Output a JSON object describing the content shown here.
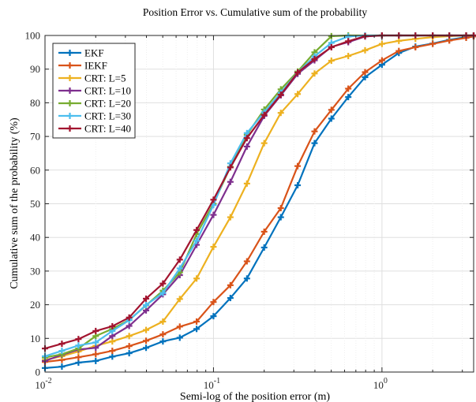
{
  "chart_data": {
    "type": "line",
    "title": "Position Error vs. Cumulative sum of the probability",
    "xlabel": "Semi-log of the position error (m)",
    "ylabel": "Cumulative sum of the probability (%)",
    "xscale": "log",
    "xlim": [
      0.01,
      3.5
    ],
    "ylim": [
      0,
      100
    ],
    "x_ticks": [
      {
        "value": 0.01,
        "base": "10",
        "exp": "-2"
      },
      {
        "value": 0.1,
        "base": "10",
        "exp": "-1"
      },
      {
        "value": 1,
        "base": "10",
        "exp": "0"
      }
    ],
    "y_ticks": [
      "0",
      "10",
      "20",
      "30",
      "40",
      "50",
      "60",
      "70",
      "80",
      "90",
      "100"
    ],
    "grid": true,
    "legend_position": "top-left",
    "x": [
      0.01,
      0.0126,
      0.0158,
      0.02,
      0.0251,
      0.0316,
      0.0398,
      0.0501,
      0.0631,
      0.0794,
      0.1,
      0.126,
      0.158,
      0.2,
      0.251,
      0.316,
      0.398,
      0.501,
      0.631,
      0.794,
      1.0,
      1.26,
      1.58,
      2.0,
      2.51,
      3.16,
      3.5
    ],
    "series": [
      {
        "name": "EKF",
        "color": "#0072BD",
        "values": [
          1.2,
          1.6,
          2.8,
          3.3,
          4.6,
          5.6,
          7.2,
          9.1,
          10.2,
          12.8,
          16.6,
          22.0,
          27.8,
          37.0,
          46.0,
          55.5,
          68.0,
          75.3,
          81.7,
          87.6,
          91.3,
          94.8,
          96.7,
          97.6,
          98.7,
          99.5,
          99.8
        ]
      },
      {
        "name": "IEKF",
        "color": "#D95319",
        "values": [
          3.0,
          3.6,
          4.4,
          5.3,
          6.3,
          7.7,
          9.3,
          11.2,
          13.5,
          15.0,
          20.8,
          25.8,
          32.9,
          41.7,
          48.7,
          61.2,
          71.5,
          77.9,
          84.2,
          89.1,
          92.6,
          95.4,
          96.5,
          97.5,
          98.5,
          99.3,
          99.7
        ]
      },
      {
        "name": "CRT: L=5",
        "color": "#EDB120",
        "values": [
          3.6,
          4.7,
          6.1,
          7.8,
          9.1,
          10.7,
          12.5,
          15.0,
          21.7,
          27.8,
          37.2,
          46.0,
          56.0,
          68.0,
          77.0,
          82.6,
          88.7,
          92.5,
          93.9,
          95.6,
          97.5,
          98.4,
          99.0,
          99.5,
          99.8,
          100,
          100
        ]
      },
      {
        "name": "CRT: L=10",
        "color": "#7E2F8E",
        "values": [
          3.3,
          5.1,
          6.7,
          7.2,
          10.7,
          13.7,
          18.3,
          23.1,
          28.8,
          37.8,
          46.7,
          56.5,
          67.0,
          76.1,
          82.2,
          88.6,
          92.6,
          96.6,
          98.0,
          99.7,
          100,
          100,
          100,
          100,
          100,
          100,
          100
        ]
      },
      {
        "name": "CRT: L=20",
        "color": "#77AC30",
        "values": [
          4.3,
          5.3,
          7.0,
          10.7,
          12.8,
          15.5,
          19.8,
          24.2,
          29.6,
          41.0,
          50.0,
          61.0,
          70.5,
          78.0,
          84.0,
          89.3,
          95.0,
          99.8,
          100,
          100,
          100,
          100,
          100,
          100,
          100,
          100,
          100
        ]
      },
      {
        "name": "CRT: L=30",
        "color": "#4DBEEE",
        "values": [
          4.7,
          6.3,
          7.9,
          8.8,
          12.2,
          15.4,
          19.9,
          23.5,
          30.8,
          39.0,
          49.6,
          62.0,
          71.0,
          77.2,
          83.0,
          89.0,
          93.8,
          97.8,
          99.7,
          100,
          100,
          100,
          100,
          100,
          100,
          100,
          100
        ]
      },
      {
        "name": "CRT: L=40",
        "color": "#A2142F",
        "values": [
          7.0,
          8.4,
          9.8,
          12.2,
          13.6,
          16.2,
          21.8,
          26.3,
          33.4,
          42.2,
          51.2,
          60.8,
          69.5,
          76.4,
          82.4,
          89.0,
          93.0,
          96.5,
          98.3,
          99.8,
          100,
          100,
          100,
          100,
          100,
          100,
          100
        ]
      }
    ]
  }
}
